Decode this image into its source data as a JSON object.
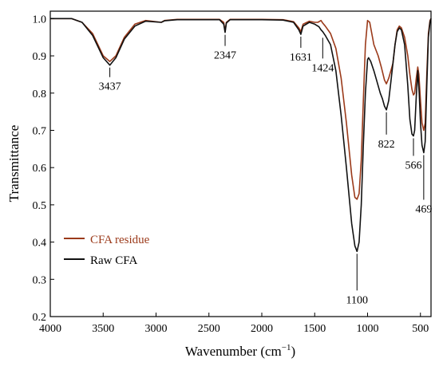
{
  "chart_data": {
    "type": "line",
    "xlabel_main": "Wavenumber (cm",
    "xlabel_sup": "−1",
    "xlabel_close": ")",
    "ylabel": "Transmittance",
    "xlim": [
      4000,
      400
    ],
    "ylim": [
      0.2,
      1.02
    ],
    "x_reversed": true,
    "x_ticks": [
      4000,
      3500,
      3000,
      2500,
      2000,
      1500,
      1000,
      500
    ],
    "y_ticks": [
      0.2,
      0.3,
      0.4,
      0.5,
      0.6,
      0.7,
      0.8,
      0.9,
      1.0
    ],
    "y_tick_labels": [
      "0.2",
      "0.3",
      "0.4",
      "0.5",
      "0.6",
      "0.7",
      "0.8",
      "0.9",
      "1.0"
    ],
    "legend_position": "bottom-left",
    "grid": false,
    "series": [
      {
        "name": "CFA residue",
        "color": "#9b3a1a",
        "points": [
          [
            4000,
            1.0
          ],
          [
            3800,
            1.0
          ],
          [
            3700,
            0.99
          ],
          [
            3600,
            0.96
          ],
          [
            3500,
            0.9
          ],
          [
            3437,
            0.885
          ],
          [
            3380,
            0.9
          ],
          [
            3300,
            0.95
          ],
          [
            3200,
            0.985
          ],
          [
            3100,
            0.995
          ],
          [
            2950,
            0.99
          ],
          [
            2920,
            0.995
          ],
          [
            2800,
            0.998
          ],
          [
            2400,
            0.998
          ],
          [
            2360,
            0.99
          ],
          [
            2347,
            0.965
          ],
          [
            2335,
            0.99
          ],
          [
            2300,
            0.998
          ],
          [
            2000,
            0.998
          ],
          [
            1800,
            0.997
          ],
          [
            1700,
            0.992
          ],
          [
            1650,
            0.975
          ],
          [
            1631,
            0.965
          ],
          [
            1610,
            0.985
          ],
          [
            1550,
            0.993
          ],
          [
            1500,
            0.99
          ],
          [
            1470,
            0.99
          ],
          [
            1440,
            0.995
          ],
          [
            1424,
            0.988
          ],
          [
            1400,
            0.98
          ],
          [
            1350,
            0.96
          ],
          [
            1300,
            0.92
          ],
          [
            1250,
            0.84
          ],
          [
            1200,
            0.72
          ],
          [
            1150,
            0.58
          ],
          [
            1120,
            0.52
          ],
          [
            1100,
            0.515
          ],
          [
            1080,
            0.53
          ],
          [
            1060,
            0.62
          ],
          [
            1040,
            0.78
          ],
          [
            1020,
            0.93
          ],
          [
            1000,
            0.995
          ],
          [
            980,
            0.99
          ],
          [
            960,
            0.96
          ],
          [
            940,
            0.93
          ],
          [
            900,
            0.9
          ],
          [
            870,
            0.87
          ],
          [
            840,
            0.835
          ],
          [
            822,
            0.825
          ],
          [
            800,
            0.84
          ],
          [
            780,
            0.86
          ],
          [
            760,
            0.88
          ],
          [
            740,
            0.93
          ],
          [
            720,
            0.97
          ],
          [
            700,
            0.98
          ],
          [
            680,
            0.975
          ],
          [
            650,
            0.95
          ],
          [
            620,
            0.9
          ],
          [
            600,
            0.85
          ],
          [
            580,
            0.81
          ],
          [
            566,
            0.795
          ],
          [
            555,
            0.8
          ],
          [
            540,
            0.84
          ],
          [
            525,
            0.87
          ],
          [
            515,
            0.85
          ],
          [
            500,
            0.78
          ],
          [
            485,
            0.72
          ],
          [
            469,
            0.7
          ],
          [
            455,
            0.72
          ],
          [
            440,
            0.85
          ],
          [
            425,
            0.96
          ],
          [
            410,
            0.995
          ],
          [
            400,
            1.0
          ]
        ]
      },
      {
        "name": "Raw CFA",
        "color": "#111111",
        "points": [
          [
            4000,
            1.0
          ],
          [
            3800,
            1.0
          ],
          [
            3700,
            0.99
          ],
          [
            3600,
            0.955
          ],
          [
            3500,
            0.895
          ],
          [
            3437,
            0.875
          ],
          [
            3380,
            0.895
          ],
          [
            3300,
            0.945
          ],
          [
            3200,
            0.98
          ],
          [
            3100,
            0.993
          ],
          [
            2950,
            0.99
          ],
          [
            2920,
            0.994
          ],
          [
            2800,
            0.997
          ],
          [
            2400,
            0.997
          ],
          [
            2360,
            0.985
          ],
          [
            2347,
            0.963
          ],
          [
            2335,
            0.988
          ],
          [
            2300,
            0.997
          ],
          [
            2000,
            0.997
          ],
          [
            1800,
            0.996
          ],
          [
            1700,
            0.99
          ],
          [
            1650,
            0.97
          ],
          [
            1631,
            0.958
          ],
          [
            1610,
            0.98
          ],
          [
            1550,
            0.99
          ],
          [
            1500,
            0.985
          ],
          [
            1460,
            0.978
          ],
          [
            1440,
            0.97
          ],
          [
            1424,
            0.965
          ],
          [
            1400,
            0.955
          ],
          [
            1350,
            0.93
          ],
          [
            1300,
            0.86
          ],
          [
            1250,
            0.74
          ],
          [
            1200,
            0.6
          ],
          [
            1150,
            0.45
          ],
          [
            1120,
            0.39
          ],
          [
            1100,
            0.375
          ],
          [
            1080,
            0.4
          ],
          [
            1060,
            0.5
          ],
          [
            1040,
            0.66
          ],
          [
            1020,
            0.8
          ],
          [
            1000,
            0.89
          ],
          [
            990,
            0.895
          ],
          [
            970,
            0.885
          ],
          [
            940,
            0.86
          ],
          [
            910,
            0.83
          ],
          [
            880,
            0.8
          ],
          [
            860,
            0.785
          ],
          [
            840,
            0.765
          ],
          [
            822,
            0.755
          ],
          [
            800,
            0.78
          ],
          [
            780,
            0.83
          ],
          [
            760,
            0.88
          ],
          [
            740,
            0.93
          ],
          [
            720,
            0.965
          ],
          [
            700,
            0.975
          ],
          [
            680,
            0.97
          ],
          [
            650,
            0.93
          ],
          [
            620,
            0.82
          ],
          [
            600,
            0.73
          ],
          [
            580,
            0.69
          ],
          [
            566,
            0.685
          ],
          [
            555,
            0.7
          ],
          [
            540,
            0.79
          ],
          [
            525,
            0.86
          ],
          [
            512,
            0.8
          ],
          [
            500,
            0.72
          ],
          [
            485,
            0.66
          ],
          [
            469,
            0.64
          ],
          [
            455,
            0.67
          ],
          [
            440,
            0.82
          ],
          [
            425,
            0.95
          ],
          [
            410,
            0.99
          ],
          [
            400,
            1.0
          ]
        ]
      }
    ],
    "annotations": [
      {
        "label": "3437",
        "x": 3437,
        "y": 0.875,
        "side": "below"
      },
      {
        "label": "2347",
        "x": 2347,
        "y": 0.963,
        "side": "below"
      },
      {
        "label": "1631",
        "x": 1631,
        "y": 0.958,
        "side": "below"
      },
      {
        "label": "1424",
        "x": 1424,
        "y": 0.955,
        "side": "below"
      },
      {
        "label": "1100",
        "x": 1100,
        "y": 0.375,
        "side": "below"
      },
      {
        "label": "822",
        "x": 822,
        "y": 0.755,
        "side": "below"
      },
      {
        "label": "566",
        "x": 566,
        "y": 0.685,
        "side": "below"
      },
      {
        "label": "469",
        "x": 469,
        "y": 0.64,
        "side": "below"
      }
    ]
  }
}
